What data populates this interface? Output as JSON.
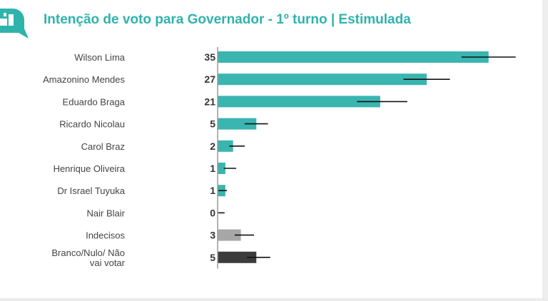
{
  "colors": {
    "title": "#2fb3ad",
    "candidate": "#3ab5b0",
    "indecisos": "#a7a7a7",
    "branco": "#3c3c3c",
    "error_bar": "#111111",
    "axis": "#9a9a9a",
    "label": "#444444",
    "value": "#333333"
  },
  "icons": {
    "logo": "chat-bubble-chart-icon"
  },
  "chart_data": {
    "type": "bar",
    "orientation": "horizontal",
    "title": "Intenção de voto para Governador - 1º turno | Estimulada",
    "xlabel": "",
    "ylabel": "",
    "xlim": [
      0,
      40
    ],
    "unit": "%",
    "grid": false,
    "legend": "none",
    "bars": [
      {
        "label": "Wilson Lima",
        "value": 35,
        "error_low": 31.5,
        "error_high": 38.5,
        "color_key": "candidate"
      },
      {
        "label": "Amazonino Mendes",
        "value": 27,
        "error_low": 24,
        "error_high": 30,
        "color_key": "candidate"
      },
      {
        "label": "Eduardo Braga",
        "value": 21,
        "error_low": 18,
        "error_high": 24.5,
        "color_key": "candidate"
      },
      {
        "label": "Ricardo Nicolau",
        "value": 5,
        "error_low": 3.5,
        "error_high": 6.5,
        "color_key": "candidate"
      },
      {
        "label": "Carol Braz",
        "value": 2,
        "error_low": 1.5,
        "error_high": 3.5,
        "color_key": "candidate"
      },
      {
        "label": "Henrique Oliveira",
        "value": 1,
        "error_low": 0.8,
        "error_high": 2.4,
        "color_key": "candidate"
      },
      {
        "label": "Dr Israel Tuyuka",
        "value": 1,
        "error_low": 0.1,
        "error_high": 1.2,
        "color_key": "candidate"
      },
      {
        "label": "Nair Blair",
        "value": 0,
        "error_low": 0,
        "error_high": 0.9,
        "color_key": "candidate"
      },
      {
        "label": "Indecisos",
        "value": 3,
        "error_low": 2.2,
        "error_high": 4.7,
        "color_key": "indecisos"
      },
      {
        "label": "Branco/Nulo/ Não vai votar",
        "label_lines": [
          "Branco/Nulo/ Não",
          "vai votar"
        ],
        "value": 5,
        "error_low": 3.8,
        "error_high": 6.8,
        "color_key": "branco"
      }
    ]
  }
}
